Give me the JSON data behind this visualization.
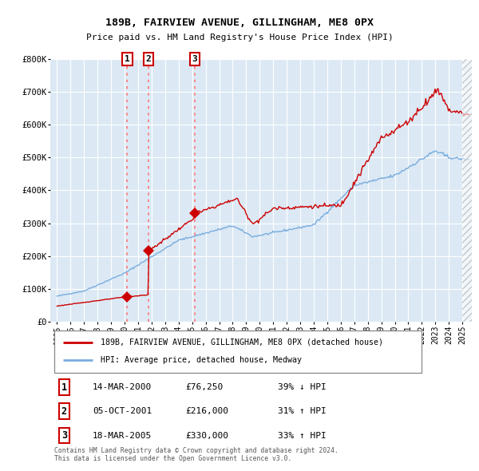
{
  "title_line1": "189B, FAIRVIEW AVENUE, GILLINGHAM, ME8 0PX",
  "title_line2": "Price paid vs. HM Land Registry's House Price Index (HPI)",
  "background_color": "#dce9f5",
  "fig_bg_color": "#ffffff",
  "red_line_color": "#cc0000",
  "blue_line_color": "#7aaddd",
  "grid_color": "#cccccc",
  "sale_dates_years": [
    2000.2,
    2001.75,
    2005.2
  ],
  "sale_prices": [
    76250,
    216000,
    330000
  ],
  "annotation_labels": [
    "1",
    "2",
    "3"
  ],
  "legend_label_red": "189B, FAIRVIEW AVENUE, GILLINGHAM, ME8 0PX (detached house)",
  "legend_label_blue": "HPI: Average price, detached house, Medway",
  "table_data": [
    [
      "1",
      "14-MAR-2000",
      "£76,250",
      "39% ↓ HPI"
    ],
    [
      "2",
      "05-OCT-2001",
      "£216,000",
      "31% ↑ HPI"
    ],
    [
      "3",
      "18-MAR-2005",
      "£330,000",
      "33% ↑ HPI"
    ]
  ],
  "footer_text": "Contains HM Land Registry data © Crown copyright and database right 2024.\nThis data is licensed under the Open Government Licence v3.0.",
  "ylim": [
    0,
    800000
  ],
  "yticks": [
    0,
    100000,
    200000,
    300000,
    400000,
    500000,
    600000,
    700000,
    800000
  ],
  "ytick_labels": [
    "£0",
    "£100K",
    "£200K",
    "£300K",
    "£400K",
    "£500K",
    "£600K",
    "£700K",
    "£800K"
  ],
  "xlim_start": 1994.5,
  "xlim_end": 2025.7,
  "xtick_years": [
    1995,
    1996,
    1997,
    1998,
    1999,
    2000,
    2001,
    2002,
    2003,
    2004,
    2005,
    2006,
    2007,
    2008,
    2009,
    2010,
    2011,
    2012,
    2013,
    2014,
    2015,
    2016,
    2017,
    2018,
    2019,
    2020,
    2021,
    2022,
    2023,
    2024,
    2025
  ]
}
